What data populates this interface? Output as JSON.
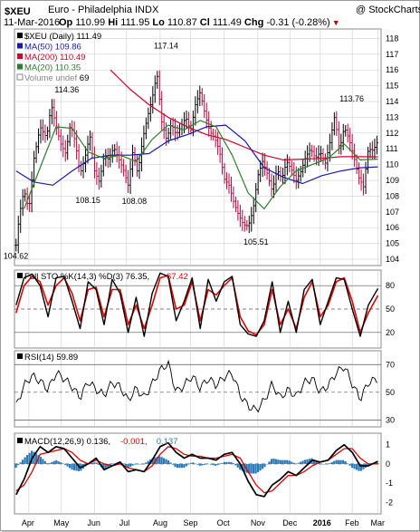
{
  "header": {
    "symbol": "$XEU",
    "name": "Euro - Philadelphia INDX",
    "copyright": "@ StockCharts.com",
    "date": "11-Mar-2016",
    "op_label": "Op",
    "op": "110.99",
    "hi_label": "Hi",
    "hi": "111.95",
    "lo_label": "Lo",
    "lo": "110.87",
    "cl_label": "Cl",
    "cl": "111.49",
    "chg_label": "Chg",
    "chg": "-0.31 (-0.28%)",
    "chg_arrow": "▼"
  },
  "colors": {
    "price_bar_up": "#000000",
    "price_bar_down": "#c0003a",
    "ma50": "#1a1aa8",
    "ma200": "#d4002a",
    "ma20": "#2e7d2e",
    "sto_k": "#000000",
    "sto_d": "#e00000",
    "rsi": "#000000",
    "macd": "#000000",
    "macd_signal": "#e00000",
    "macd_hist": "#2a7ab8",
    "grid": "#cfcfcf"
  },
  "chart_data": [
    {
      "type": "line",
      "panel": "price",
      "legend": [
        {
          "label": "$XEU (Daily) 111.49",
          "color": "#000000",
          "icon": "square-swatch"
        },
        {
          "label": "MA(50) 109.86",
          "color": "#1a1aa8",
          "icon": "square-swatch"
        },
        {
          "label": "MA(200) 110.49",
          "color": "#d4002a",
          "icon": "square-swatch"
        },
        {
          "label": "MA(20) 110.35",
          "color": "#2e7d2e",
          "icon": "square-swatch"
        },
        {
          "label": "Volume undef",
          "color": "#888888",
          "icon": "bar-swatch"
        }
      ],
      "volume_label_value": "69",
      "ylim": [
        103.6,
        118.6
      ],
      "yticks": [
        104,
        105,
        106,
        107,
        108,
        109,
        110,
        111,
        112,
        113,
        114,
        115,
        116,
        117,
        118
      ],
      "grid": true,
      "x_months": [
        "Apr",
        "May",
        "Jun",
        "Jul",
        "Aug",
        "Sep",
        "Oct",
        "Nov",
        "Dec",
        "2016",
        "Feb",
        "Mar"
      ],
      "x_range_months": [
        0,
        11.45
      ],
      "x_month_positions": [
        0.45,
        1.45,
        2.5,
        3.5,
        4.55,
        5.5,
        6.55,
        7.6,
        8.6,
        9.55,
        10.55,
        11.35
      ],
      "close_points": {
        "t": [
          0.05,
          0.15,
          0.3,
          0.45,
          0.6,
          0.8,
          1.0,
          1.15,
          1.3,
          1.45,
          1.6,
          1.75,
          1.9,
          2.05,
          2.2,
          2.35,
          2.5,
          2.65,
          2.8,
          2.95,
          3.1,
          3.25,
          3.4,
          3.55,
          3.7,
          3.85,
          4.0,
          4.15,
          4.3,
          4.45,
          4.6,
          4.75,
          4.9,
          5.05,
          5.2,
          5.35,
          5.5,
          5.65,
          5.8,
          5.95,
          6.1,
          6.25,
          6.4,
          6.55,
          6.7,
          6.85,
          7.0,
          7.15,
          7.3,
          7.45,
          7.6,
          7.75,
          7.9,
          8.05,
          8.2,
          8.35,
          8.5,
          8.65,
          8.8,
          8.95,
          9.1,
          9.25,
          9.4,
          9.55,
          9.7,
          9.85,
          10.0,
          10.15,
          10.3,
          10.45,
          10.6,
          10.75,
          10.9,
          11.05,
          11.2,
          11.35
        ],
        "close": [
          104.9,
          106.8,
          108.4,
          107.1,
          110.3,
          112.4,
          111.7,
          113.8,
          112.4,
          111.3,
          110.7,
          112.6,
          111.4,
          109.4,
          110.4,
          111.9,
          109.6,
          108.9,
          110.6,
          110.3,
          111.1,
          110.4,
          109.7,
          108.7,
          110.9,
          109.4,
          111.6,
          113.0,
          114.2,
          115.8,
          112.7,
          111.6,
          112.6,
          111.9,
          112.4,
          113.0,
          112.1,
          113.8,
          114.6,
          113.2,
          112.1,
          111.7,
          110.9,
          109.1,
          108.7,
          107.6,
          106.8,
          106.2,
          106.1,
          107.1,
          109.3,
          110.2,
          109.4,
          108.3,
          109.7,
          109.1,
          110.2,
          109.7,
          109.0,
          109.6,
          110.5,
          111.0,
          110.4,
          110.8,
          110.0,
          111.4,
          113.1,
          110.9,
          112.4,
          111.6,
          110.5,
          109.2,
          108.6,
          111.0,
          110.9,
          111.5
        ]
      },
      "annotations": [
        {
          "label": "104.62",
          "t": 0.05,
          "y": 104.62,
          "pos": "below"
        },
        {
          "label": "114.36",
          "t": 1.65,
          "y": 114.36,
          "pos": "above"
        },
        {
          "label": "108.15",
          "t": 2.3,
          "y": 108.15,
          "pos": "below"
        },
        {
          "label": "108.08",
          "t": 3.75,
          "y": 108.08,
          "pos": "below"
        },
        {
          "label": "117.14",
          "t": 4.75,
          "y": 117.14,
          "pos": "above"
        },
        {
          "label": "105.51",
          "t": 7.55,
          "y": 105.51,
          "pos": "below"
        },
        {
          "label": "113.76",
          "t": 10.55,
          "y": 113.76,
          "pos": "above"
        }
      ],
      "ma50": {
        "t": [
          0.05,
          0.6,
          1.2,
          1.8,
          2.4,
          3.0,
          3.6,
          4.2,
          4.8,
          5.4,
          6.0,
          6.6,
          7.2,
          7.8,
          8.4,
          9.0,
          9.6,
          10.2,
          10.8,
          11.35
        ],
        "v": [
          109.6,
          108.9,
          108.7,
          109.6,
          110.4,
          110.6,
          110.6,
          110.7,
          111.5,
          111.9,
          112.4,
          112.5,
          111.5,
          109.8,
          109.2,
          108.8,
          109.3,
          109.6,
          109.8,
          109.86
        ]
      },
      "ma200": {
        "t": [
          3.0,
          3.6,
          4.2,
          4.8,
          5.4,
          6.0,
          6.6,
          7.2,
          7.8,
          8.4,
          9.0,
          9.6,
          10.2,
          10.8,
          11.35
        ],
        "v": [
          116.0,
          114.8,
          113.8,
          113.0,
          112.4,
          111.9,
          111.6,
          111.1,
          110.6,
          110.3,
          110.35,
          110.4,
          110.5,
          110.5,
          110.49
        ]
      },
      "ma20": {
        "t": [
          0.3,
          0.8,
          1.3,
          1.8,
          2.3,
          2.8,
          3.3,
          3.8,
          4.3,
          4.8,
          5.3,
          5.8,
          6.3,
          6.8,
          7.3,
          7.8,
          8.3,
          8.8,
          9.3,
          9.8,
          10.3,
          10.8,
          11.35
        ],
        "v": [
          107.2,
          109.8,
          112.4,
          112.3,
          110.8,
          110.4,
          110.6,
          110.2,
          111.6,
          112.5,
          112.2,
          112.8,
          112.4,
          110.6,
          108.2,
          107.2,
          108.6,
          109.6,
          110.0,
          110.4,
          111.3,
          110.3,
          110.35
        ]
      }
    },
    {
      "type": "line",
      "panel": "stochastic",
      "legend": [
        {
          "label": "Full STO %K(14,3) %D(3) 76.35,",
          "color": "#000000",
          "icon": "square-swatch"
        },
        {
          "label": "67.42",
          "color": "#e00000",
          "icon": "none"
        }
      ],
      "ylim": [
        0,
        100
      ],
      "yticks": [
        20,
        50,
        80
      ],
      "ref_lines": [
        80,
        50,
        20
      ],
      "k": {
        "t": [
          0.05,
          0.3,
          0.55,
          0.8,
          1.05,
          1.3,
          1.55,
          1.8,
          2.05,
          2.3,
          2.55,
          2.8,
          3.05,
          3.3,
          3.55,
          3.8,
          4.05,
          4.3,
          4.55,
          4.8,
          5.05,
          5.3,
          5.55,
          5.8,
          6.05,
          6.3,
          6.55,
          6.8,
          7.05,
          7.3,
          7.55,
          7.8,
          8.05,
          8.3,
          8.55,
          8.8,
          9.05,
          9.3,
          9.55,
          9.8,
          10.05,
          10.3,
          10.55,
          10.8,
          11.05,
          11.35
        ],
        "v": [
          55,
          90,
          95,
          80,
          40,
          90,
          92,
          60,
          25,
          85,
          75,
          30,
          88,
          70,
          20,
          65,
          15,
          70,
          96,
          92,
          35,
          60,
          90,
          25,
          88,
          60,
          85,
          92,
          30,
          18,
          15,
          35,
          85,
          20,
          60,
          20,
          75,
          88,
          30,
          60,
          90,
          88,
          50,
          15,
          55,
          76.35
        ]
      },
      "d": {
        "t": [
          0.05,
          0.3,
          0.55,
          0.8,
          1.05,
          1.3,
          1.55,
          1.8,
          2.05,
          2.3,
          2.55,
          2.8,
          3.05,
          3.3,
          3.55,
          3.8,
          4.05,
          4.3,
          4.55,
          4.8,
          5.05,
          5.3,
          5.55,
          5.8,
          6.05,
          6.3,
          6.55,
          6.8,
          7.05,
          7.3,
          7.55,
          7.8,
          8.05,
          8.3,
          8.55,
          8.8,
          9.05,
          9.3,
          9.55,
          9.8,
          10.05,
          10.3,
          10.55,
          10.8,
          11.05,
          11.35
        ],
        "v": [
          45,
          80,
          92,
          85,
          55,
          80,
          90,
          70,
          35,
          75,
          78,
          40,
          75,
          75,
          30,
          55,
          25,
          55,
          90,
          93,
          50,
          55,
          85,
          35,
          75,
          68,
          80,
          90,
          40,
          22,
          17,
          30,
          75,
          30,
          50,
          25,
          65,
          85,
          40,
          55,
          85,
          90,
          60,
          20,
          45,
          67.42
        ]
      }
    },
    {
      "type": "line",
      "panel": "rsi",
      "legend": [
        {
          "label": "RSI(14) 59.89",
          "color": "#000000",
          "icon": "square-swatch"
        }
      ],
      "ylim": [
        25,
        80
      ],
      "yticks": [
        30,
        50,
        70
      ],
      "ref_lines": [
        70,
        50,
        30
      ],
      "rsi": {
        "t": [
          0.05,
          0.3,
          0.55,
          0.8,
          1.05,
          1.3,
          1.55,
          1.8,
          2.05,
          2.3,
          2.55,
          2.8,
          3.05,
          3.3,
          3.55,
          3.8,
          4.05,
          4.3,
          4.55,
          4.8,
          5.05,
          5.3,
          5.55,
          5.8,
          6.05,
          6.3,
          6.55,
          6.8,
          7.05,
          7.3,
          7.55,
          7.8,
          8.05,
          8.3,
          8.55,
          8.8,
          9.05,
          9.3,
          9.55,
          9.8,
          10.05,
          10.3,
          10.55,
          10.8,
          11.05,
          11.35
        ],
        "v": [
          40,
          55,
          62,
          58,
          52,
          64,
          60,
          54,
          46,
          58,
          52,
          48,
          57,
          54,
          44,
          53,
          46,
          56,
          66,
          71,
          50,
          55,
          62,
          53,
          60,
          55,
          61,
          64,
          48,
          40,
          37,
          44,
          56,
          46,
          52,
          47,
          57,
          60,
          50,
          55,
          64,
          69,
          56,
          45,
          57,
          59.89
        ]
      }
    },
    {
      "type": "line",
      "panel": "macd",
      "legend": [
        {
          "label": "MACD(12,26,9) 0.136,",
          "color": "#000000",
          "icon": "square-swatch"
        },
        {
          "label": "-0.001,",
          "color": "#e00000",
          "icon": "none"
        },
        {
          "label": "0.137",
          "color": "#2a7ab8",
          "icon": "none"
        }
      ],
      "ylim": [
        -2.6,
        1.6
      ],
      "yticks": [
        -2,
        -1,
        0,
        1
      ],
      "ref_lines": [
        0
      ],
      "macd": {
        "t": [
          0.05,
          0.3,
          0.55,
          0.8,
          1.05,
          1.3,
          1.55,
          1.8,
          2.05,
          2.3,
          2.55,
          2.8,
          3.05,
          3.3,
          3.55,
          3.8,
          4.05,
          4.3,
          4.55,
          4.8,
          5.05,
          5.3,
          5.55,
          5.8,
          6.05,
          6.3,
          6.55,
          6.8,
          7.05,
          7.3,
          7.55,
          7.8,
          8.05,
          8.3,
          8.55,
          8.8,
          9.05,
          9.3,
          9.55,
          9.8,
          10.05,
          10.3,
          10.55,
          10.8,
          11.05,
          11.35
        ],
        "v": [
          -1.6,
          -0.8,
          0.3,
          0.9,
          0.6,
          0.9,
          0.8,
          0.3,
          -0.2,
          0.0,
          0.3,
          -0.3,
          -0.1,
          0.1,
          -0.4,
          -0.3,
          -0.4,
          0.2,
          0.9,
          1.1,
          0.6,
          0.3,
          0.5,
          0.3,
          0.3,
          0.2,
          0.5,
          0.6,
          0.0,
          -0.9,
          -1.6,
          -1.7,
          -1.1,
          -0.8,
          -0.4,
          -0.6,
          -0.2,
          0.2,
          0.1,
          0.2,
          0.7,
          1.0,
          0.6,
          -0.1,
          -0.1,
          0.136
        ]
      },
      "signal": {
        "t": [
          0.05,
          0.3,
          0.55,
          0.8,
          1.05,
          1.3,
          1.55,
          1.8,
          2.05,
          2.3,
          2.55,
          2.8,
          3.05,
          3.3,
          3.55,
          3.8,
          4.05,
          4.3,
          4.55,
          4.8,
          5.05,
          5.3,
          5.55,
          5.8,
          6.05,
          6.3,
          6.55,
          6.8,
          7.05,
          7.3,
          7.55,
          7.8,
          8.05,
          8.3,
          8.55,
          8.8,
          9.05,
          9.3,
          9.55,
          9.8,
          10.05,
          10.3,
          10.55,
          10.8,
          11.05,
          11.35
        ],
        "v": [
          -1.4,
          -1.1,
          -0.4,
          0.5,
          0.6,
          0.7,
          0.8,
          0.6,
          0.2,
          0.0,
          0.2,
          0.0,
          -0.1,
          0.0,
          -0.2,
          -0.3,
          -0.4,
          -0.1,
          0.5,
          0.9,
          0.8,
          0.5,
          0.4,
          0.4,
          0.3,
          0.3,
          0.4,
          0.5,
          0.3,
          -0.4,
          -1.1,
          -1.5,
          -1.4,
          -1.0,
          -0.6,
          -0.6,
          -0.4,
          -0.1,
          0.1,
          0.2,
          0.5,
          0.8,
          0.8,
          0.3,
          0.0,
          -0.001
        ]
      }
    }
  ]
}
